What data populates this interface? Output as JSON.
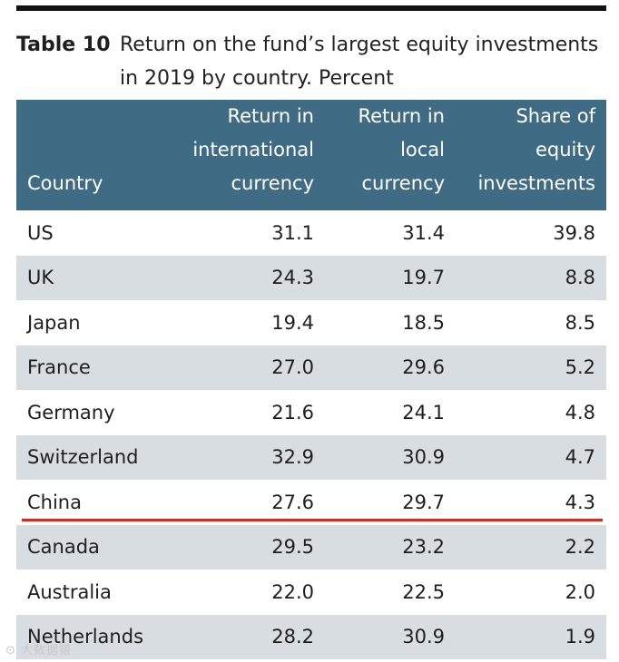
{
  "caption": {
    "label": "Table 10",
    "text": "Return on the fund’s largest equity investments in 2019 by country. Percent"
  },
  "table": {
    "headers": [
      "Country",
      "Return in international currency",
      "Return in local currency",
      "Share of equity investments"
    ],
    "rows": [
      [
        "US",
        "31.1",
        "31.4",
        "39.8"
      ],
      [
        "UK",
        "24.3",
        "19.7",
        "8.8"
      ],
      [
        "Japan",
        "19.4",
        "18.5",
        "8.5"
      ],
      [
        "France",
        "27.0",
        "29.6",
        "5.2"
      ],
      [
        "Germany",
        "21.6",
        "24.1",
        "4.8"
      ],
      [
        "Switzerland",
        "32.9",
        "30.9",
        "4.7"
      ],
      [
        "China",
        "27.6",
        "29.7",
        "4.3"
      ],
      [
        "Canada",
        "29.5",
        "23.2",
        "2.2"
      ],
      [
        "Australia",
        "22.0",
        "22.5",
        "2.0"
      ],
      [
        "Netherlands",
        "28.2",
        "30.9",
        "1.9"
      ]
    ]
  },
  "colors": {
    "header_bg": "#3f6b84",
    "alt_row_bg": "#d8dde1",
    "highlight_line": "#d42a22"
  },
  "watermark": "⊙ 大数据猿"
}
